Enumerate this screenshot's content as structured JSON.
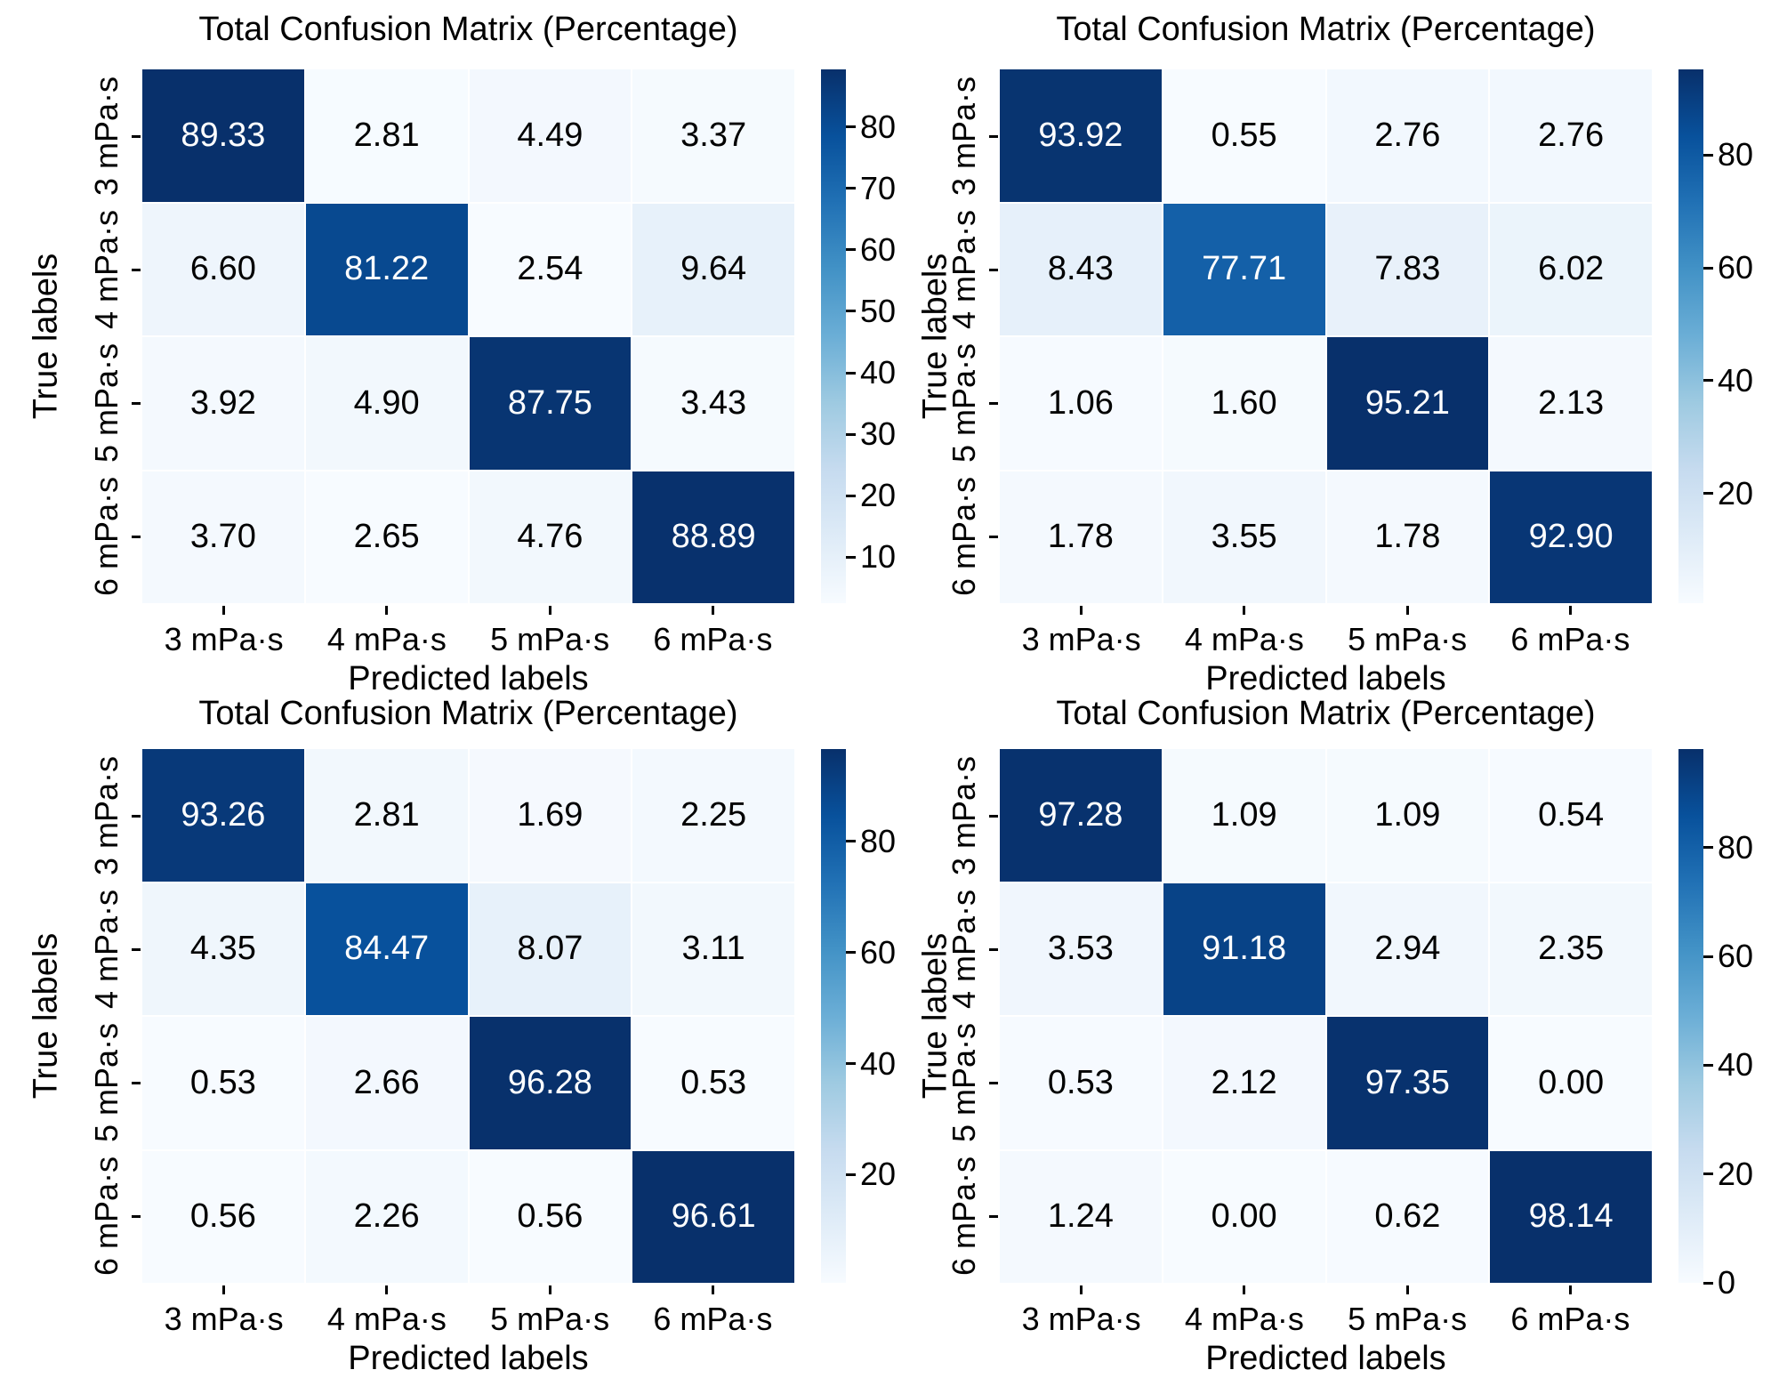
{
  "page": {
    "background": "#ffffff"
  },
  "palette": {
    "blues_stops": [
      "#f7fbff",
      "#deebf7",
      "#c6dbef",
      "#9ecae1",
      "#6baed6",
      "#4292c6",
      "#2171b5",
      "#08519c",
      "#08306b"
    ],
    "cell_text_dark": "#000000",
    "cell_text_light": "#ffffff"
  },
  "chart_data": [
    {
      "type": "heatmap",
      "position": "top-left",
      "title": "Total Confusion Matrix (Percentage)",
      "xlabel": "Predicted labels",
      "ylabel": "True labels",
      "x_categories": [
        "3 mPa·s",
        "4 mPa·s",
        "5 mPa·s",
        "6 mPa·s"
      ],
      "y_categories": [
        "3 mPa·s",
        "4 mPa·s",
        "5 mPa·s",
        "6 mPa·s"
      ],
      "values": [
        [
          89.33,
          2.81,
          4.49,
          3.37
        ],
        [
          6.6,
          81.22,
          2.54,
          9.64
        ],
        [
          3.92,
          4.9,
          87.75,
          3.43
        ],
        [
          3.7,
          2.65,
          4.76,
          88.89
        ]
      ],
      "decimals": 2,
      "colormap": "Blues",
      "colorbar": {
        "vmin": 2.54,
        "vmax": 89.33,
        "ticks": [
          80,
          70,
          60,
          50,
          40,
          30,
          20,
          10
        ]
      }
    },
    {
      "type": "heatmap",
      "position": "top-right",
      "title": "Total Confusion Matrix (Percentage)",
      "xlabel": "Predicted labels",
      "ylabel": "True labels",
      "x_categories": [
        "3 mPa·s",
        "4 mPa·s",
        "5 mPa·s",
        "6 mPa·s"
      ],
      "y_categories": [
        "3 mPa·s",
        "4 mPa·s",
        "5 mPa·s",
        "6 mPa·s"
      ],
      "values": [
        [
          93.92,
          0.55,
          2.76,
          2.76
        ],
        [
          8.43,
          77.71,
          7.83,
          6.02
        ],
        [
          1.06,
          1.6,
          95.21,
          2.13
        ],
        [
          1.78,
          3.55,
          1.78,
          92.9
        ]
      ],
      "decimals": 2,
      "colormap": "Blues",
      "colorbar": {
        "vmin": 0.55,
        "vmax": 95.21,
        "ticks": [
          80,
          60,
          40,
          20
        ]
      }
    },
    {
      "type": "heatmap",
      "position": "bottom-left",
      "title": "Total Confusion Matrix (Percentage)",
      "xlabel": "Predicted labels",
      "ylabel": "True labels",
      "x_categories": [
        "3 mPa·s",
        "4 mPa·s",
        "5 mPa·s",
        "6 mPa·s"
      ],
      "y_categories": [
        "3 mPa·s",
        "4 mPa·s",
        "5 mPa·s",
        "6 mPa·s"
      ],
      "values": [
        [
          93.26,
          2.81,
          1.69,
          2.25
        ],
        [
          4.35,
          84.47,
          8.07,
          3.11
        ],
        [
          0.53,
          2.66,
          96.28,
          0.53
        ],
        [
          0.56,
          2.26,
          0.56,
          96.61
        ]
      ],
      "decimals": 2,
      "colormap": "Blues",
      "colorbar": {
        "vmin": 0.53,
        "vmax": 96.61,
        "ticks": [
          80,
          60,
          40,
          20
        ]
      }
    },
    {
      "type": "heatmap",
      "position": "bottom-right",
      "title": "Total Confusion Matrix (Percentage)",
      "xlabel": "Predicted labels",
      "ylabel": "True labels",
      "x_categories": [
        "3 mPa·s",
        "4 mPa·s",
        "5 mPa·s",
        "6 mPa·s"
      ],
      "y_categories": [
        "3 mPa·s",
        "4 mPa·s",
        "5 mPa·s",
        "6 mPa·s"
      ],
      "values": [
        [
          97.28,
          1.09,
          1.09,
          0.54
        ],
        [
          3.53,
          91.18,
          2.94,
          2.35
        ],
        [
          0.53,
          2.12,
          97.35,
          0.0
        ],
        [
          1.24,
          0.0,
          0.62,
          98.14
        ]
      ],
      "decimals": 2,
      "colormap": "Blues",
      "colorbar": {
        "vmin": 0.0,
        "vmax": 98.14,
        "ticks": [
          80,
          60,
          40,
          20,
          0
        ]
      }
    }
  ]
}
